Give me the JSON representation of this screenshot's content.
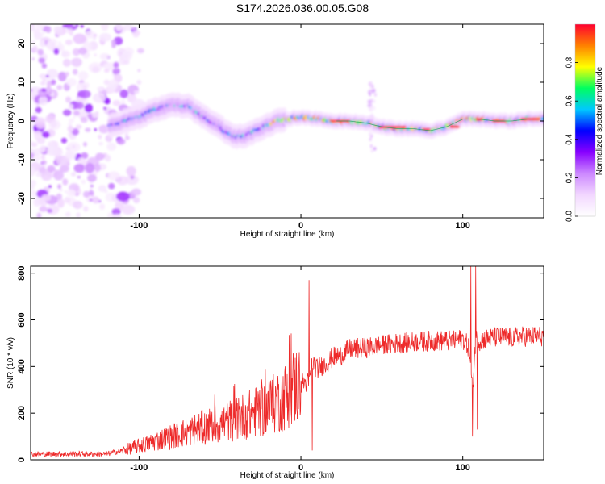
{
  "title": "S174.2026.036.00.05.G08",
  "colors": {
    "snr_line": "#ee2a2a",
    "colormap": [
      "#ffffff",
      "#f2d7ff",
      "#cc88ff",
      "#8800ff",
      "#0000ff",
      "#00c8ff",
      "#00ff60",
      "#ffff00",
      "#ff8000",
      "#ff0030"
    ]
  },
  "chart_data": [
    {
      "type": "heatmap",
      "title": "",
      "xlabel": "Height of straight line (km)",
      "ylabel": "Frequency (Hz)",
      "xlim": [
        -167,
        150
      ],
      "ylim": [
        -25,
        25
      ],
      "xticks": [
        -100,
        0,
        100
      ],
      "yticks": [
        20,
        10,
        0,
        -10,
        -20
      ],
      "colorbar": {
        "label": "Normalized spectral amplitude",
        "range": [
          0.0,
          1.0
        ],
        "ticks": [
          0.0,
          0.2,
          0.4,
          0.6,
          0.8
        ]
      },
      "ridge_trace": {
        "x": [
          -115,
          -100,
          -90,
          -80,
          -70,
          -60,
          -50,
          -42,
          -35,
          -25,
          -15,
          0,
          10,
          20,
          30,
          40,
          45,
          50,
          60,
          70,
          80,
          90,
          100,
          110,
          120,
          130,
          140,
          150
        ],
        "y": [
          -1,
          1,
          3,
          4,
          4,
          1,
          -1.5,
          -4,
          -4,
          -2,
          0,
          1,
          0.5,
          0,
          0,
          -0.5,
          -1,
          -1.5,
          -2,
          -2,
          -2.5,
          -1.5,
          0.5,
          0.5,
          0,
          0,
          0.5,
          0.5
        ]
      }
    },
    {
      "type": "line",
      "title": "",
      "xlabel": "Height of straight line (km)",
      "ylabel": "SNR (10 * v/v)",
      "xlim": [
        -167,
        150
      ],
      "ylim": [
        0,
        830
      ],
      "xticks": [
        -100,
        0,
        100
      ],
      "yticks": [
        0,
        200,
        400,
        600,
        800
      ],
      "series": [
        {
          "name": "SNR",
          "x": [
            -167,
            -150,
            -140,
            -130,
            -120,
            -110,
            -100,
            -90,
            -80,
            -70,
            -60,
            -50,
            -40,
            -30,
            -20,
            -10,
            -5,
            0,
            5,
            7,
            10,
            15,
            20,
            25,
            30,
            40,
            50,
            60,
            70,
            80,
            90,
            95,
            100,
            104,
            106,
            108,
            110,
            115,
            120,
            130,
            140,
            150
          ],
          "y": [
            25,
            25,
            25,
            25,
            25,
            40,
            60,
            80,
            100,
            120,
            140,
            155,
            175,
            200,
            225,
            270,
            310,
            330,
            330,
            420,
            390,
            410,
            440,
            450,
            475,
            480,
            490,
            500,
            505,
            510,
            510,
            510,
            520,
            480,
            300,
            520,
            510,
            520,
            525,
            525,
            530,
            530
          ]
        }
      ]
    }
  ]
}
